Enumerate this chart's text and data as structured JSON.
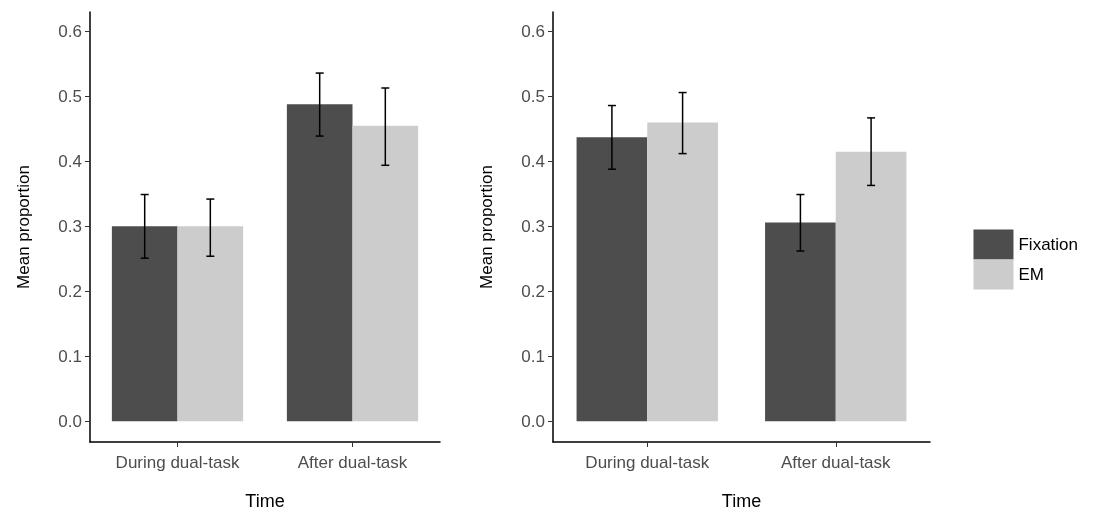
{
  "chart_data": [
    {
      "type": "bar",
      "xlabel": "Time",
      "ylabel": "Mean proportion",
      "categories": [
        "During dual-task",
        "After dual-task"
      ],
      "series": [
        {
          "color": "#4d4d4d",
          "values": [
            0.3,
            0.488
          ],
          "errors": [
            [
              0.251,
              0.349
            ],
            [
              0.439,
              0.536
            ]
          ]
        },
        {
          "color": "#cccccc",
          "values": [
            0.3,
            0.455
          ],
          "errors": [
            [
              0.254,
              0.342
            ],
            [
              0.394,
              0.513
            ]
          ]
        }
      ],
      "ylim": [
        -0.032,
        0.63
      ],
      "yticks": [
        {
          "value": 0,
          "label": "0.0"
        },
        0.1,
        0.2,
        0.3,
        0.4,
        0.5,
        0.6
      ],
      "grid": false,
      "legend": false
    },
    {
      "type": "bar",
      "xlabel": "Time",
      "ylabel": "Mean proportion",
      "categories": [
        "During dual-task",
        "After dual-task"
      ],
      "series": [
        {
          "name": "Fixation",
          "color": "#4d4d4d",
          "values": [
            0.437,
            0.306
          ],
          "errors": [
            [
              0.388,
              0.486
            ],
            [
              0.262,
              0.349
            ]
          ]
        },
        {
          "name": "EM",
          "color": "#cccccc",
          "values": [
            0.46,
            0.415
          ],
          "errors": [
            [
              0.412,
              0.506
            ],
            [
              0.363,
              0.467
            ]
          ]
        }
      ],
      "ylim": [
        -0.032,
        0.63
      ],
      "yticks": [
        {
          "value": 0,
          "label": "0.0"
        },
        0.1,
        0.2,
        0.3,
        0.4,
        0.5,
        0.6
      ],
      "grid": false,
      "legend": "right"
    }
  ]
}
